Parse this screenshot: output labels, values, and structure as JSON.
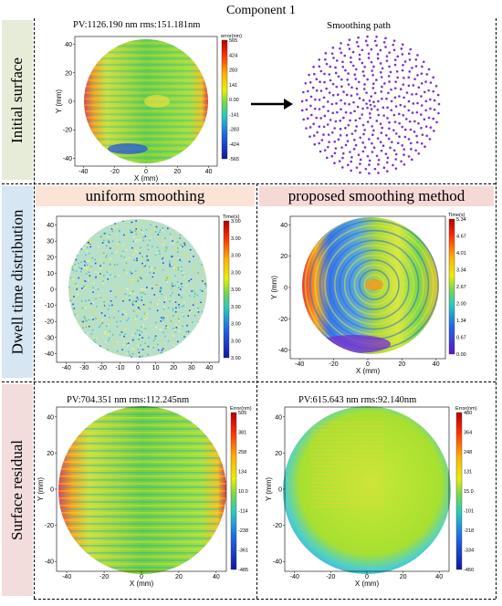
{
  "title": "Component 1",
  "rows": {
    "initial": "Initial surface",
    "dwell": "Dwell time distribution",
    "residual": "Surface residual"
  },
  "columns": {
    "uniform": "uniform smoothing",
    "proposed": "proposed smoothing method"
  },
  "smoothing_path_title": "Smoothing path",
  "colors": {
    "initial_label_bg": "#e6ecd7",
    "dwell_label_bg": "#d6e6f2",
    "residual_label_bg": "#f2dcdc",
    "uniform_header_bg": "#fbe3d6",
    "proposed_header_bg": "#f5d9d5",
    "path_dots": "#7b2fd6"
  },
  "panels": {
    "initial": {
      "title": "PV:1126.190 nm rms:151.181nm",
      "colorbar_title": "error(nm)",
      "colorbar_ticks": [
        "565",
        "424",
        "283",
        "141",
        "0.00",
        "-141",
        "-283",
        "-424",
        "-565"
      ],
      "xlabel": "X (mm)",
      "ylabel": "Y (mm)",
      "xticks": [
        "-40",
        "-20",
        "0",
        "20",
        "40"
      ],
      "yticks": [
        "40",
        "20",
        "0",
        "-20",
        "-40"
      ]
    },
    "uniform": {
      "colorbar_title": "Time(s)",
      "colorbar_ticks": [
        "3.00",
        "3.00",
        "3.00",
        "3.00",
        "3.00",
        "3.00",
        "3.00",
        "3.00",
        "3.00"
      ],
      "xticks": [
        "-40",
        "-30",
        "-20",
        "-10",
        "0",
        "10",
        "20",
        "30",
        "40"
      ],
      "yticks": [
        "40",
        "30",
        "20",
        "10",
        "0",
        "-10",
        "-20",
        "-30",
        "-40"
      ]
    },
    "proposed": {
      "colorbar_title": "Time(s)",
      "colorbar_ticks": [
        "5.34",
        "4.67",
        "4.01",
        "3.34",
        "2.67",
        "2.00",
        "1.34",
        "0.67",
        "0.00"
      ],
      "xlabel": "X (mm)",
      "ylabel": "Y (mm)",
      "xticks": [
        "-40",
        "-20",
        "0",
        "20",
        "40"
      ],
      "yticks": [
        "40",
        "20",
        "0",
        "-20",
        "-40"
      ]
    },
    "residual_uniform": {
      "title": "PV:704.351 nm rms:112.245nm",
      "colorbar_title": "Error(nm)",
      "colorbar_ticks": [
        "505",
        "381",
        "258",
        "134",
        "10.0",
        "-114",
        "-238",
        "-361",
        "-485"
      ],
      "xlabel": "X (mm)",
      "ylabel": "Y (mm)",
      "xticks": [
        "-40",
        "-20",
        "0",
        "20",
        "40"
      ],
      "yticks": [
        "40",
        "20",
        "0",
        "-20",
        "-40"
      ]
    },
    "residual_proposed": {
      "title": "PV:615.643 nm rms:92.140nm",
      "colorbar_title": "Error(nm)",
      "colorbar_ticks": [
        "480",
        "364",
        "248",
        "131",
        "15.0",
        "-101",
        "-218",
        "-334",
        "-450"
      ],
      "xlabel": "X (mm)",
      "ylabel": "Y (mm)",
      "xticks": [
        "-40",
        "-20",
        "0",
        "20",
        "40"
      ],
      "yticks": [
        "40",
        "20",
        "0",
        "-20",
        "-40"
      ]
    }
  }
}
